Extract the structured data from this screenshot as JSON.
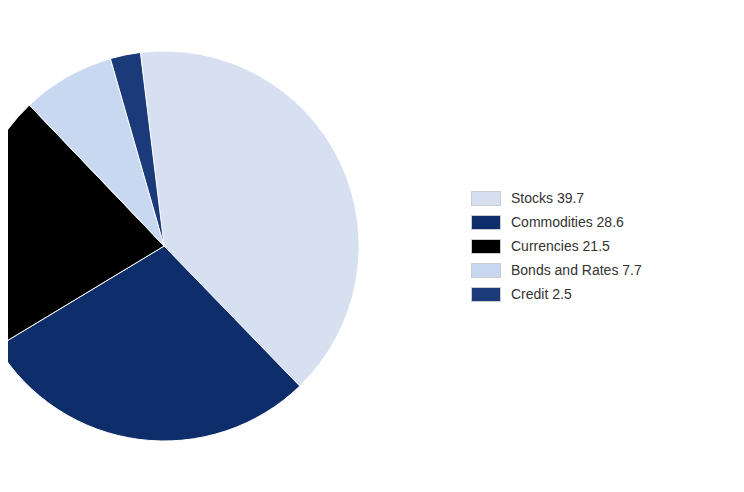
{
  "chart_data": {
    "type": "pie",
    "categories": [
      "Stocks 39.7",
      "Commodities 28.6",
      "Currencies 21.5",
      "Bonds and Rates 7.7",
      "Credit 2.5"
    ],
    "values": [
      39.7,
      28.6,
      21.5,
      7.7,
      2.5
    ],
    "colors": [
      "#d6e0f0",
      "#0d2d6b",
      "#000000",
      "#c8d8f0",
      "#1a3a7a"
    ],
    "legend": "right"
  }
}
